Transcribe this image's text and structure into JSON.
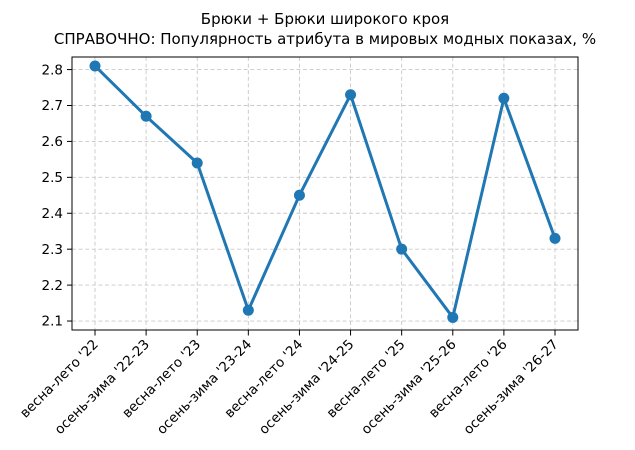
{
  "chart_data": {
    "type": "line",
    "title_line1": "Брюки + Брюки широкого кроя",
    "title_line2": "СПРАВОЧНО: Популярность атрибута в мировых модных показах, %",
    "categories": [
      "весна-лето '22",
      "осень-зима '22-23",
      "весна-лето '23",
      "осень-зима '23-24",
      "весна-лето '24",
      "осень-зима '24-25",
      "весна-лето '25",
      "осень-зима '25-26",
      "весна-лето '26",
      "осень-зима '26-27"
    ],
    "values": [
      2.81,
      2.67,
      2.54,
      2.13,
      2.45,
      2.73,
      2.3,
      2.11,
      2.72,
      2.33
    ],
    "xlabel": "",
    "ylabel": "",
    "yticks": [
      2.1,
      2.2,
      2.3,
      2.4,
      2.5,
      2.6,
      2.7,
      2.8
    ],
    "ylim": [
      2.075,
      2.835
    ],
    "grid": true,
    "grid_style": "dashed",
    "legend": "none",
    "line_color": "#1f77b4",
    "marker": "circle",
    "grid_color": "#c9c9c9",
    "axis_color": "#000000",
    "background_color": "#ffffff"
  }
}
